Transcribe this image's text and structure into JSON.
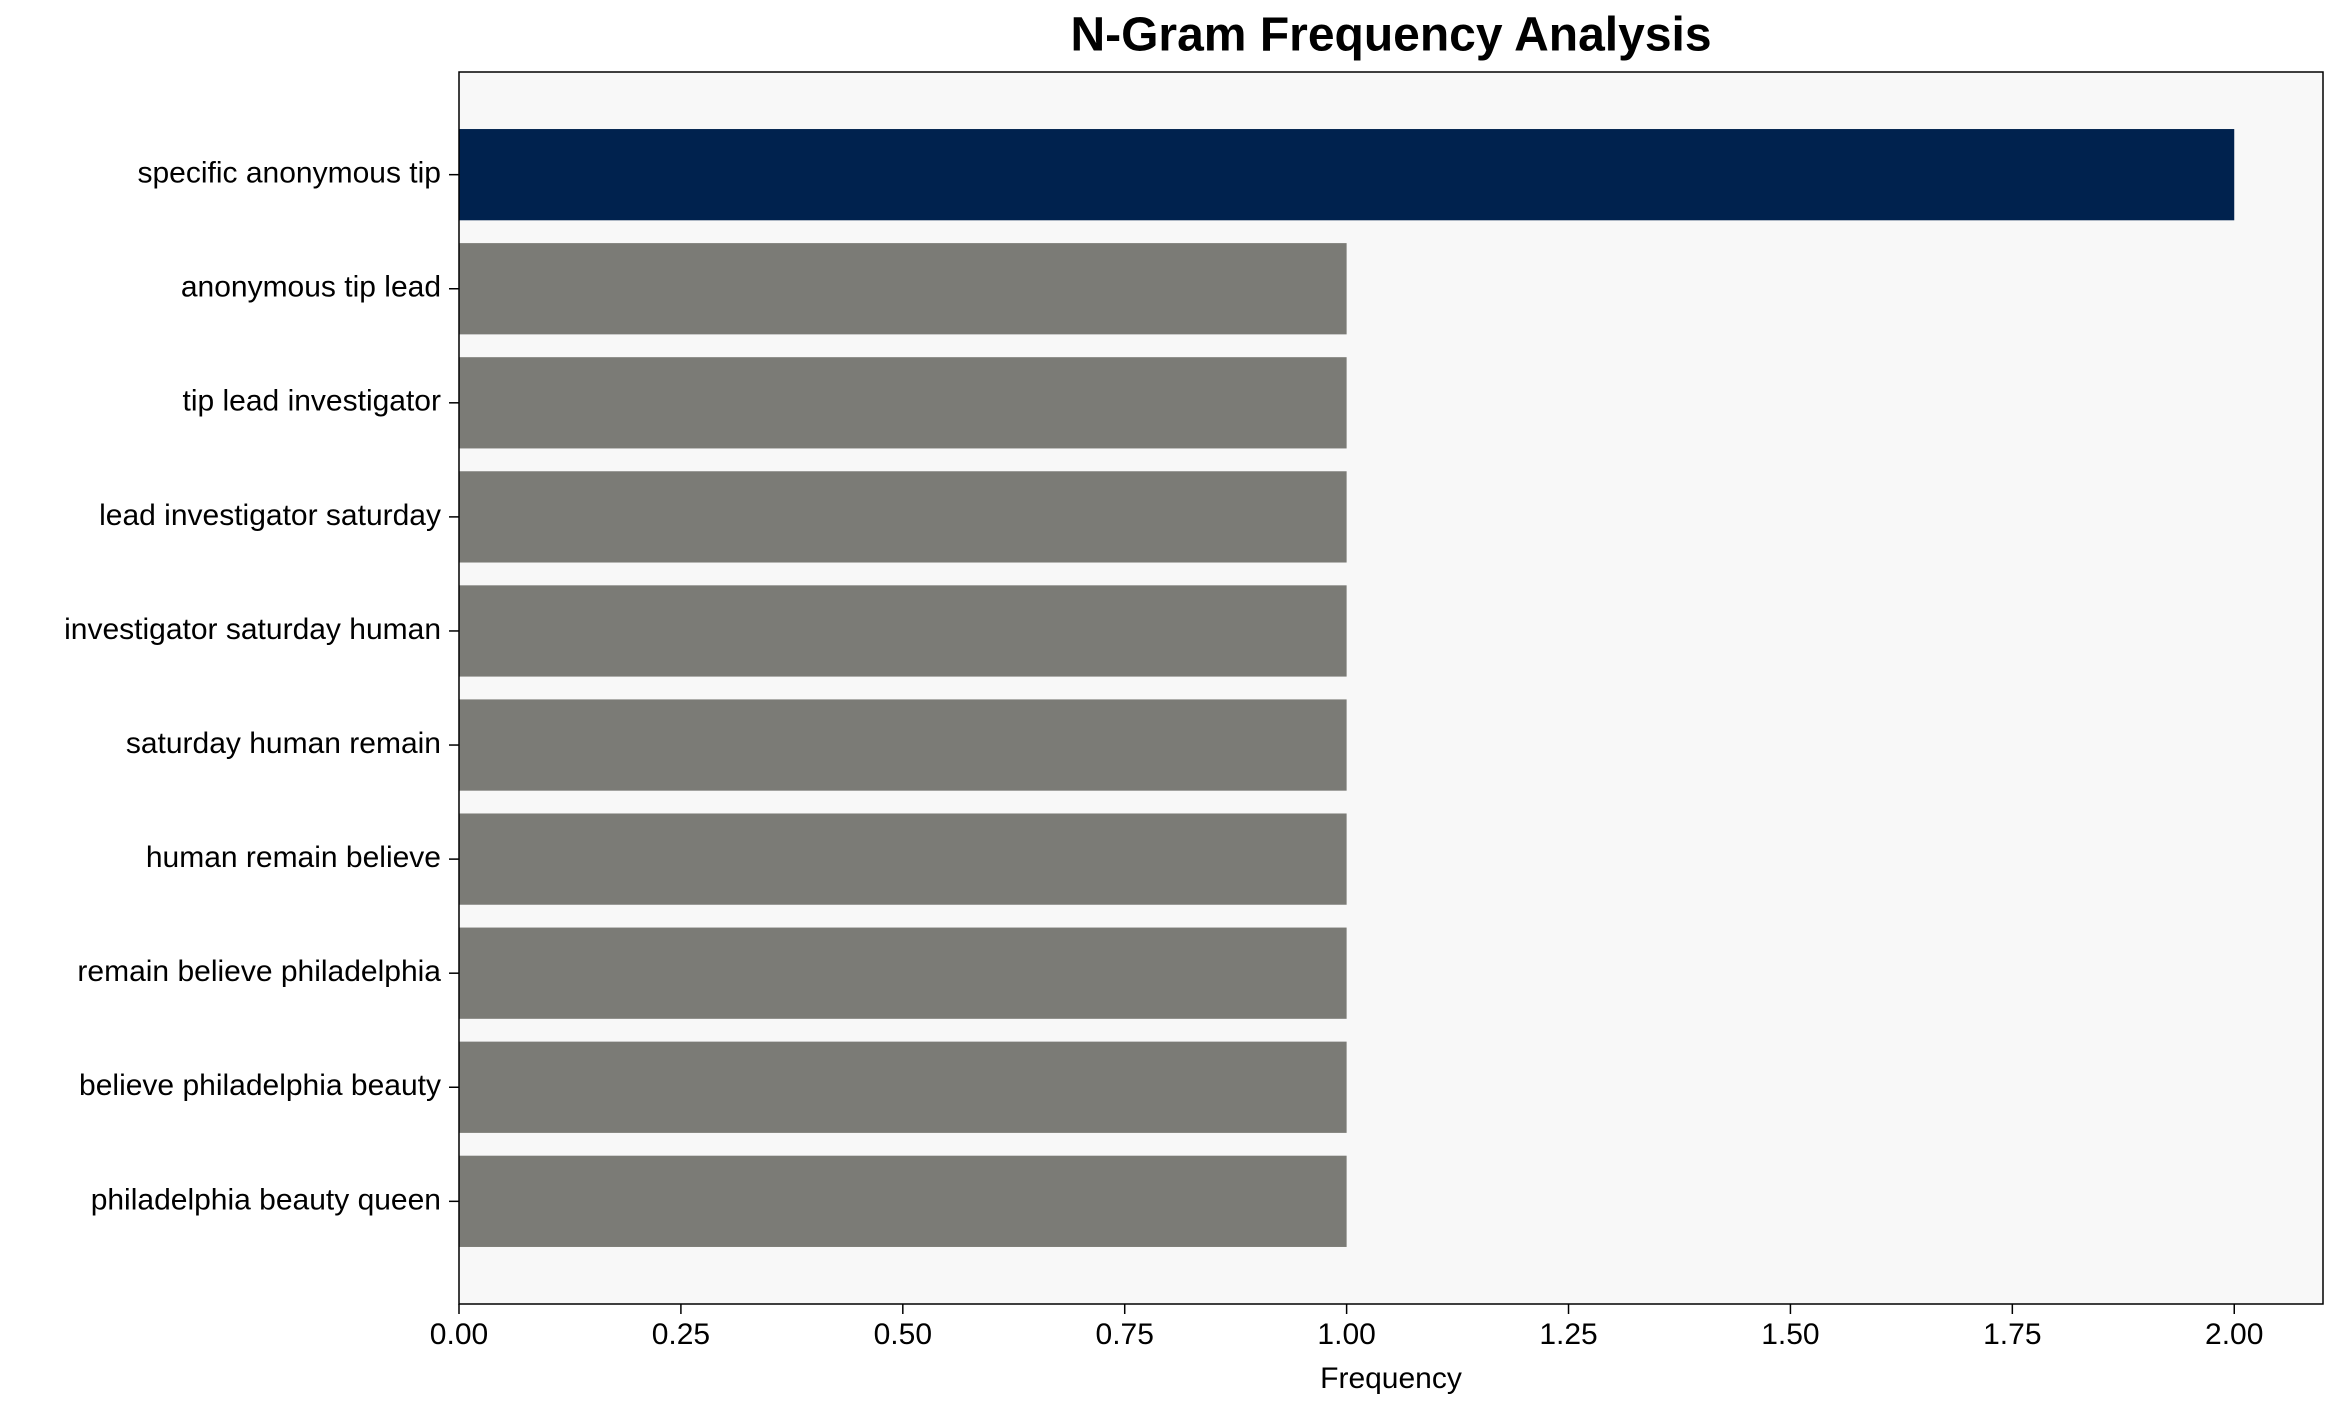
{
  "chart_data": {
    "type": "barh",
    "title": "N-Gram Frequency Analysis",
    "xlabel": "Frequency",
    "categories": [
      "specific anonymous tip",
      "anonymous tip lead",
      "tip lead investigator",
      "lead investigator saturday",
      "investigator saturday human",
      "saturday human remain",
      "human remain believe",
      "remain believe philadelphia",
      "believe philadelphia beauty",
      "philadelphia beauty queen"
    ],
    "values": [
      2,
      1,
      1,
      1,
      1,
      1,
      1,
      1,
      1,
      1
    ],
    "colors": [
      "#00224e",
      "#7b7b76",
      "#7b7b76",
      "#7b7b76",
      "#7b7b76",
      "#7b7b76",
      "#7b7b76",
      "#7b7b76",
      "#7b7b76",
      "#7b7b76"
    ],
    "xlim": [
      0,
      2.1
    ],
    "xticks": [
      {
        "value": 0,
        "label": "0.00"
      },
      {
        "value": 0.25,
        "label": "0.25"
      },
      {
        "value": 0.5,
        "label": "0.50"
      },
      {
        "value": 0.75,
        "label": "0.75"
      },
      {
        "value": 1,
        "label": "1.00"
      },
      {
        "value": 1.25,
        "label": "1.25"
      },
      {
        "value": 1.5,
        "label": "1.50"
      },
      {
        "value": 1.75,
        "label": "1.75"
      },
      {
        "value": 2,
        "label": "2.00"
      }
    ],
    "grid": false
  }
}
